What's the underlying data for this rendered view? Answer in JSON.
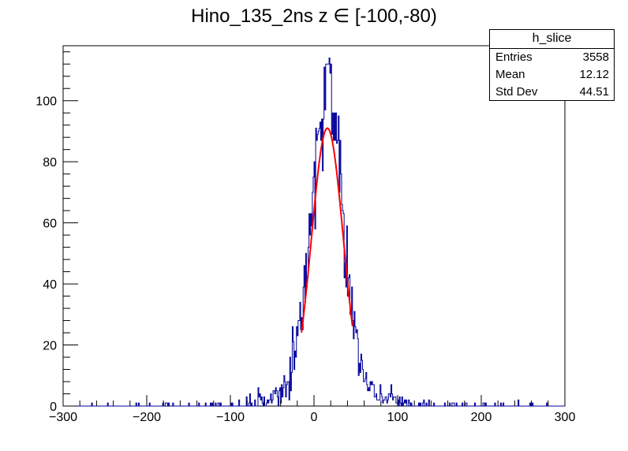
{
  "title": "Hino_135_2ns z  ∈ [-100,-80)",
  "stats": {
    "name": "h_slice",
    "rows": [
      {
        "key": "Entries",
        "value": "3558"
      },
      {
        "key": "Mean",
        "value": "12.12"
      },
      {
        "key": "Std Dev",
        "value": "44.51"
      }
    ]
  },
  "chart_data": {
    "type": "histogram",
    "title": "Hino_135_2ns z  ∈ [-100,-80)",
    "xlabel": "",
    "ylabel": "",
    "xlim": [
      -300,
      300
    ],
    "ylim": [
      0,
      118
    ],
    "x_ticks": [
      -300,
      -200,
      -100,
      0,
      100,
      200,
      300
    ],
    "y_ticks": [
      0,
      20,
      40,
      60,
      80,
      100
    ],
    "x_tick_labels": [
      "−300",
      "−200",
      "−100",
      "0",
      "100",
      "200",
      "300"
    ],
    "y_tick_labels": [
      "0",
      "20",
      "40",
      "60",
      "80",
      "100"
    ],
    "histogram": {
      "name": "h_slice",
      "color": "#000099",
      "entries": 3558,
      "mean": 12.12,
      "std_dev": 44.51,
      "peak_bin_value": 112,
      "peak_x": 16
    },
    "fit": {
      "type": "gaussian",
      "color": "#ff0000",
      "mean": 16,
      "sigma": 19,
      "amplitude": 91,
      "x_range": [
        -15,
        46
      ]
    },
    "colors": {
      "histogram": "#000099",
      "fit": "#ff0000",
      "axes": "#000000"
    }
  }
}
